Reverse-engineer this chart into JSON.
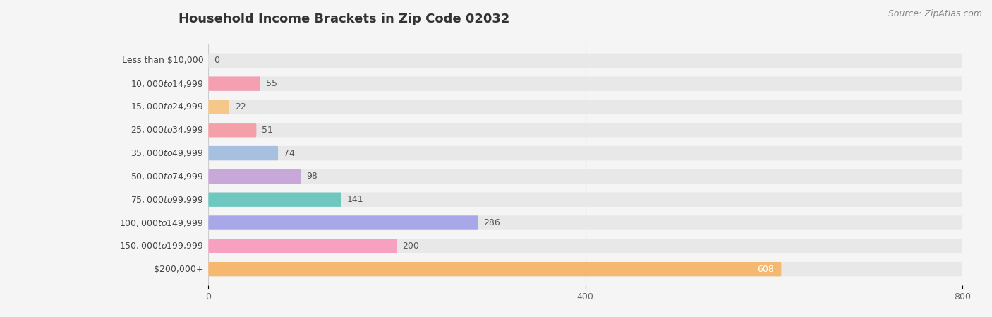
{
  "title": "Household Income Brackets in Zip Code 02032",
  "source": "Source: ZipAtlas.com",
  "categories": [
    "Less than $10,000",
    "$10,000 to $14,999",
    "$15,000 to $24,999",
    "$25,000 to $34,999",
    "$35,000 to $49,999",
    "$50,000 to $74,999",
    "$75,000 to $99,999",
    "$100,000 to $149,999",
    "$150,000 to $199,999",
    "$200,000+"
  ],
  "values": [
    0,
    55,
    22,
    51,
    74,
    98,
    141,
    286,
    200,
    608
  ],
  "bar_colors": [
    "#a8a8d8",
    "#f4a0b0",
    "#f5c88a",
    "#f4a0a8",
    "#a8c0e0",
    "#c8a8d8",
    "#6ec8c0",
    "#a8a8e8",
    "#f8a0c0",
    "#f5b870"
  ],
  "background_color": "#f5f5f5",
  "bar_bg_color": "#e8e8e8",
  "xlim": [
    0,
    800
  ],
  "xticks": [
    0,
    400,
    800
  ],
  "bar_height": 0.62,
  "value_label_color_default": "#555555",
  "value_label_color_inside": "#ffffff",
  "title_fontsize": 13,
  "label_fontsize": 9,
  "tick_fontsize": 9,
  "source_fontsize": 9
}
